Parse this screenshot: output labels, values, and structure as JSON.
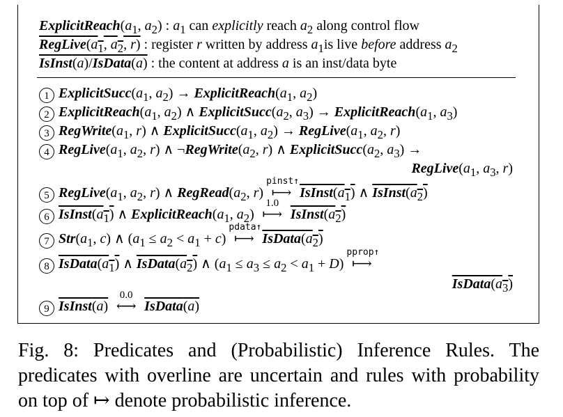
{
  "definitions": [
    {
      "id": "def-explicit-reach",
      "text": "ExplicitReach(a1, a2) : a1 can explicitly reach a2 along control flow"
    },
    {
      "id": "def-reglive",
      "text": "RegLive(a1, a2, r) : register r written by address a1is live before address a2"
    },
    {
      "id": "def-isinst-isdata",
      "text": "IsInst(a)/IsData(a) : the content at address a is an inst/data byte"
    }
  ],
  "rules": [
    {
      "num": "1",
      "text": "ExplicitSucc(a1, a2) → ExplicitReach(a1, a2)"
    },
    {
      "num": "2",
      "text": "ExplicitReach(a1, a2) ∧ ExplicitSucc(a2, a3) → ExplicitReach(a1, a3)"
    },
    {
      "num": "3",
      "text": "RegWrite(a1, r) ∧ ExplicitSucc(a1, a2) → RegLive(a1, a2, r)"
    },
    {
      "num": "4",
      "text": "RegLive(a1, a2, r) ∧ ¬RegWrite(a2, r) ∧ ExplicitSucc(a2, a3) → RegLive(a1, a3, r)"
    },
    {
      "num": "5",
      "text": "RegLive(a1, a2, r) ∧ RegRead(a2, r) ↦[pinst↑] IsInst(a1) ∧ IsInst(a2)"
    },
    {
      "num": "6",
      "text": "IsInst(a1) ∧ ExplicitReach(a1, a2) ↦[1.0] IsInst(a2)"
    },
    {
      "num": "7",
      "text": "Str(a1, c) ∧ (a1 ≤ a2 < a1 + c) ↦[pdata↑] IsData(a2)"
    },
    {
      "num": "8",
      "text": "IsData(a1) ∧ IsData(a2) ∧ (a1 ≤ a3 ≤ a2 < a1 + D) ↦[pprop↑] IsData(a3)"
    },
    {
      "num": "9",
      "text": "IsInst(a) ←↦[0.0] IsData(a)"
    }
  ],
  "labels": {
    "pinst": "pinst↑",
    "pdata": "pdata↑",
    "pprop": "pprop↑",
    "one": "1.0",
    "zero": "0.0"
  },
  "caption": "Fig. 8: Predicates and (Probabilistic) Inference Rules. The predicates with overline are uncertain and rules with probability on top of ↦ denote probabilistic inference."
}
